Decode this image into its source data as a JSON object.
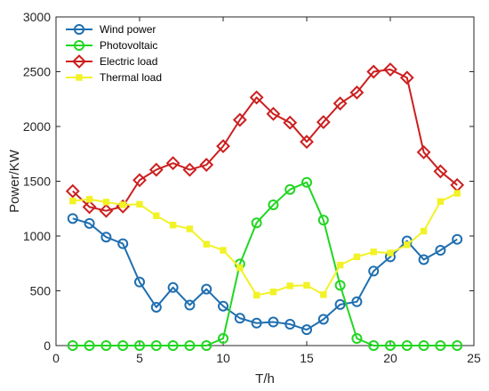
{
  "chart_data": {
    "type": "line",
    "xlabel": "T/h",
    "ylabel": "Power/KW",
    "xlim": [
      0,
      25
    ],
    "ylim": [
      0,
      3000
    ],
    "xticks": [
      0,
      5,
      10,
      15,
      20,
      25
    ],
    "yticks": [
      0,
      500,
      1000,
      1500,
      2000,
      2500,
      3000
    ],
    "grid": false,
    "legend_position": "top-left",
    "x": [
      1,
      2,
      3,
      4,
      5,
      6,
      7,
      8,
      9,
      10,
      11,
      12,
      13,
      14,
      15,
      16,
      17,
      18,
      19,
      20,
      21,
      22,
      23,
      24
    ],
    "series": [
      {
        "name": "Wind power",
        "color": "#1f6fb0",
        "marker": "circle",
        "values": [
          1160,
          1115,
          990,
          930,
          580,
          350,
          530,
          370,
          515,
          360,
          250,
          205,
          215,
          195,
          145,
          240,
          375,
          400,
          680,
          810,
          955,
          785,
          870,
          970
        ]
      },
      {
        "name": "Photovoltaic",
        "color": "#22d622",
        "marker": "circle",
        "values": [
          0,
          0,
          0,
          0,
          0,
          0,
          0,
          0,
          0,
          65,
          745,
          1120,
          1285,
          1425,
          1490,
          1145,
          550,
          65,
          0,
          0,
          0,
          0,
          0,
          0
        ]
      },
      {
        "name": "Electric load",
        "color": "#cc1f1f",
        "marker": "diamond",
        "values": [
          1410,
          1265,
          1230,
          1270,
          1510,
          1605,
          1665,
          1605,
          1650,
          1820,
          2060,
          2265,
          2115,
          2035,
          1860,
          2040,
          2210,
          2310,
          2500,
          2520,
          2445,
          1765,
          1590,
          1465
        ]
      },
      {
        "name": "Thermal load",
        "color": "#f2f227",
        "marker": "square",
        "values": [
          1320,
          1335,
          1310,
          1285,
          1290,
          1185,
          1100,
          1065,
          925,
          870,
          710,
          460,
          490,
          545,
          550,
          465,
          735,
          810,
          855,
          845,
          920,
          1045,
          1315,
          1390
        ]
      }
    ]
  }
}
